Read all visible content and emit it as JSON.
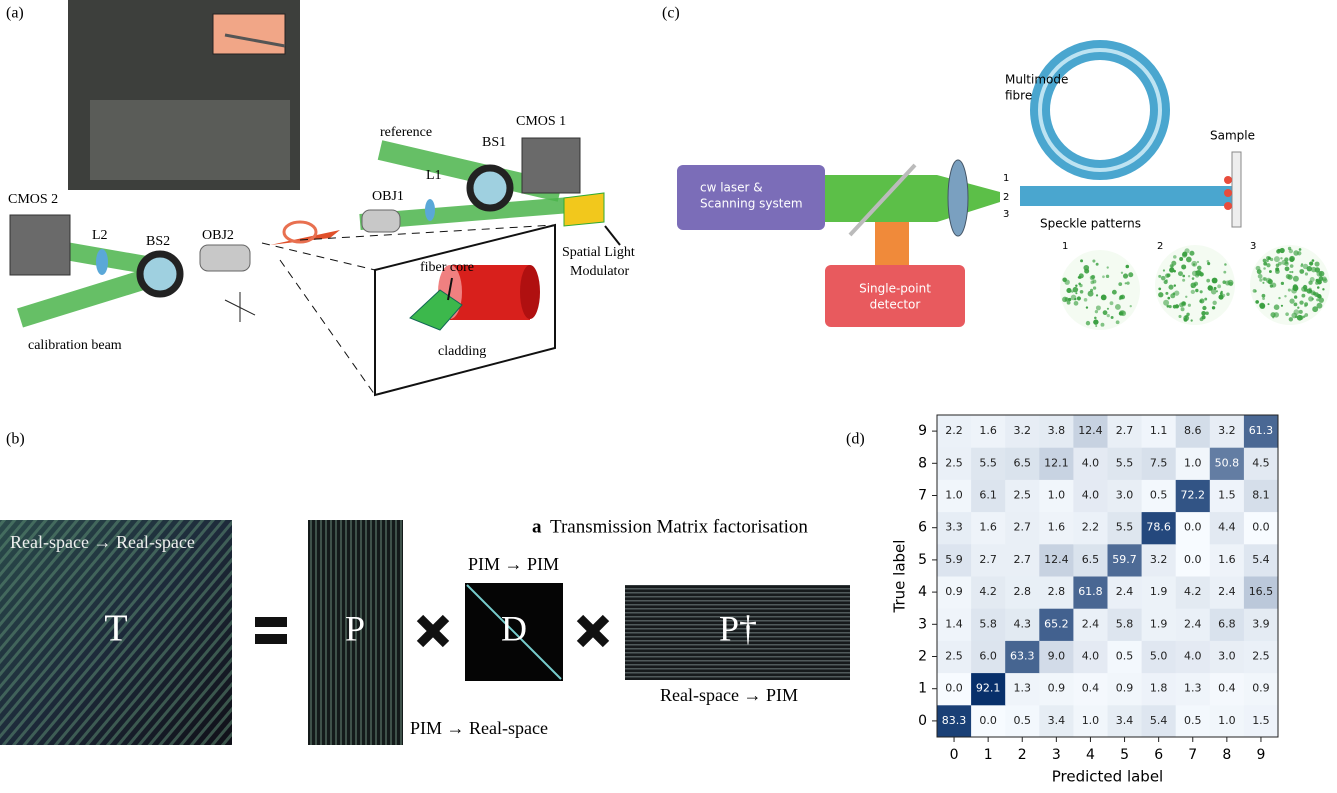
{
  "panels": {
    "a": {
      "tag": "(a)",
      "labels": [
        "reference",
        "BS1",
        "CMOS 1",
        "OBJ1",
        "L1",
        "CMOS 2",
        "L2",
        "BS2",
        "OBJ2",
        "fiber core",
        "Spatial Light",
        "Modulator",
        "cladding",
        "calibration beam"
      ]
    },
    "b": {
      "tag": "(b)",
      "heading_letter": "a",
      "heading": "Transmission Matrix factorisation",
      "t_caption": "Real-space → Real-space",
      "t": "T",
      "p": "P",
      "d": "D",
      "pdag": "P†",
      "d_caption": "PIM → PIM",
      "p_caption": "PIM → Real-space",
      "pdag_caption": "Real-space → PIM"
    },
    "c": {
      "tag": "(c)",
      "laser": [
        "cw laser &",
        "Scanning system"
      ],
      "detector": [
        "Single-point",
        "detector"
      ],
      "fibre": [
        "Multimode",
        "fibre"
      ],
      "sample": "Sample",
      "ports": [
        "1",
        "2",
        "3"
      ],
      "speckle": "Speckle patterns",
      "speckle_ids": [
        "1",
        "2",
        "3"
      ]
    },
    "d": {
      "tag": "(d)"
    }
  },
  "chart_data": {
    "type": "heatmap",
    "xlabel": "Predicted label",
    "ylabel": "True label",
    "x_categories": [
      "0",
      "1",
      "2",
      "3",
      "4",
      "5",
      "6",
      "7",
      "8",
      "9"
    ],
    "y_categories": [
      "0",
      "1",
      "2",
      "3",
      "4",
      "5",
      "6",
      "7",
      "8",
      "9"
    ],
    "colormap": [
      "#f7fbff",
      "#08306b"
    ],
    "values": [
      [
        83.3,
        0.0,
        0.5,
        3.4,
        1.0,
        3.4,
        5.4,
        0.5,
        1.0,
        1.5
      ],
      [
        0.0,
        92.1,
        1.3,
        0.9,
        0.4,
        0.9,
        1.8,
        1.3,
        0.4,
        0.9
      ],
      [
        2.5,
        6.0,
        63.3,
        9.0,
        4.0,
        0.5,
        5.0,
        4.0,
        3.0,
        2.5
      ],
      [
        1.4,
        5.8,
        4.3,
        65.2,
        2.4,
        5.8,
        1.9,
        2.4,
        6.8,
        3.9
      ],
      [
        0.9,
        4.2,
        2.8,
        2.8,
        61.8,
        2.4,
        1.9,
        4.2,
        2.4,
        16.5
      ],
      [
        5.9,
        2.7,
        2.7,
        12.4,
        6.5,
        59.7,
        3.2,
        0.0,
        1.6,
        5.4
      ],
      [
        3.3,
        1.6,
        2.7,
        1.6,
        2.2,
        5.5,
        78.6,
        0.0,
        4.4,
        0.0
      ],
      [
        1.0,
        6.1,
        2.5,
        1.0,
        4.0,
        3.0,
        0.5,
        72.2,
        1.5,
        8.1
      ],
      [
        2.5,
        5.5,
        6.5,
        12.1,
        4.0,
        5.5,
        7.5,
        1.0,
        50.8,
        4.5
      ],
      [
        2.2,
        1.6,
        3.2,
        3.8,
        12.4,
        2.7,
        1.1,
        8.6,
        3.2,
        61.3
      ]
    ],
    "value_labels": [
      [
        "83.3",
        "0.0",
        "0.5",
        "3.4",
        "1.0",
        "3.4",
        "5.4",
        "0.5",
        "1.0",
        "1.5"
      ],
      [
        "0.0",
        "92.1",
        "1.3",
        "0.9",
        "0.4",
        "0.9",
        "1.8",
        "1.3",
        "0.4",
        "0.9"
      ],
      [
        "2.5",
        "6.0",
        "63.3",
        "9.0",
        "4.0",
        "0.5",
        "5.0",
        "4.0",
        "3.0",
        "2.5"
      ],
      [
        "1.4",
        "5.8",
        "4.3",
        "65.2",
        "2.4",
        "5.8",
        "1.9",
        "2.4",
        "6.8",
        "3.9"
      ],
      [
        "0.9",
        "4.2",
        "2.8",
        "2.8",
        "61.8",
        "2.4",
        "1.9",
        "4.2",
        "2.4",
        "16.5"
      ],
      [
        "5.9",
        "2.7",
        "2.7",
        "12.4",
        "6.5",
        "59.7",
        "3.2",
        "0.0",
        "1.6",
        "5.4"
      ],
      [
        "3.3",
        "1.6",
        "2.7",
        "1.6",
        "2.2",
        "5.5",
        "78.6",
        "0.0",
        "4.4",
        "0.0"
      ],
      [
        "1.0",
        "6.1",
        "2.5",
        "1.0",
        "4.0",
        "3.0",
        "0.5",
        "72.2",
        "1.5",
        "8.1"
      ],
      [
        "2.5",
        "5.5",
        "6.5",
        "12.1",
        "4.0",
        "5.5",
        "7.5",
        "1.0",
        "50.8",
        "4.5"
      ],
      [
        "2.2",
        "1.6",
        "3.2",
        "3.8",
        "12.4",
        "2.7",
        "1.1",
        "8.6",
        "3.2",
        "61.3"
      ]
    ]
  }
}
